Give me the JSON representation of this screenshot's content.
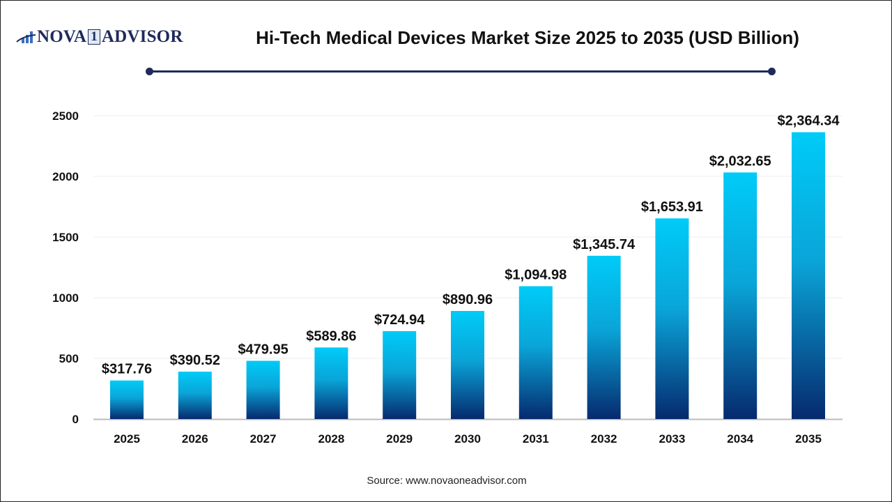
{
  "header": {
    "logo_text": "NOVA 1 ADVISOR",
    "title": "Hi-Tech Medical Devices Market Size 2025 to 2035 (USD Billion)"
  },
  "footer": {
    "source": "Source: www.novaoneadvisor.com"
  },
  "colors": {
    "bar_top": "#00cbf8",
    "bar_bottom": "#062a6e",
    "title_line": "#1e2a5a"
  },
  "chart_data": {
    "type": "bar",
    "title": "Hi-Tech Medical Devices Market Size 2025 to 2035 (USD Billion)",
    "xlabel": "",
    "ylabel": "",
    "categories": [
      "2025",
      "2026",
      "2027",
      "2028",
      "2029",
      "2030",
      "2031",
      "2032",
      "2033",
      "2034",
      "2035"
    ],
    "values": [
      317.76,
      390.52,
      479.95,
      589.86,
      724.94,
      890.96,
      1094.98,
      1345.74,
      1653.91,
      2032.65,
      2364.34
    ],
    "data_labels": [
      "$317.76",
      "$390.52",
      "$479.95",
      "$589.86",
      "$724.94",
      "$890.96",
      "$1,094.98",
      "$1,345.74",
      "$1,653.91",
      "$2,032.65",
      "$2,364.34"
    ],
    "ylim": [
      0,
      2500
    ],
    "yticks": [
      "0",
      "500",
      "1000",
      "1500",
      "2000",
      "2500"
    ],
    "grid": true,
    "legend": "none"
  }
}
